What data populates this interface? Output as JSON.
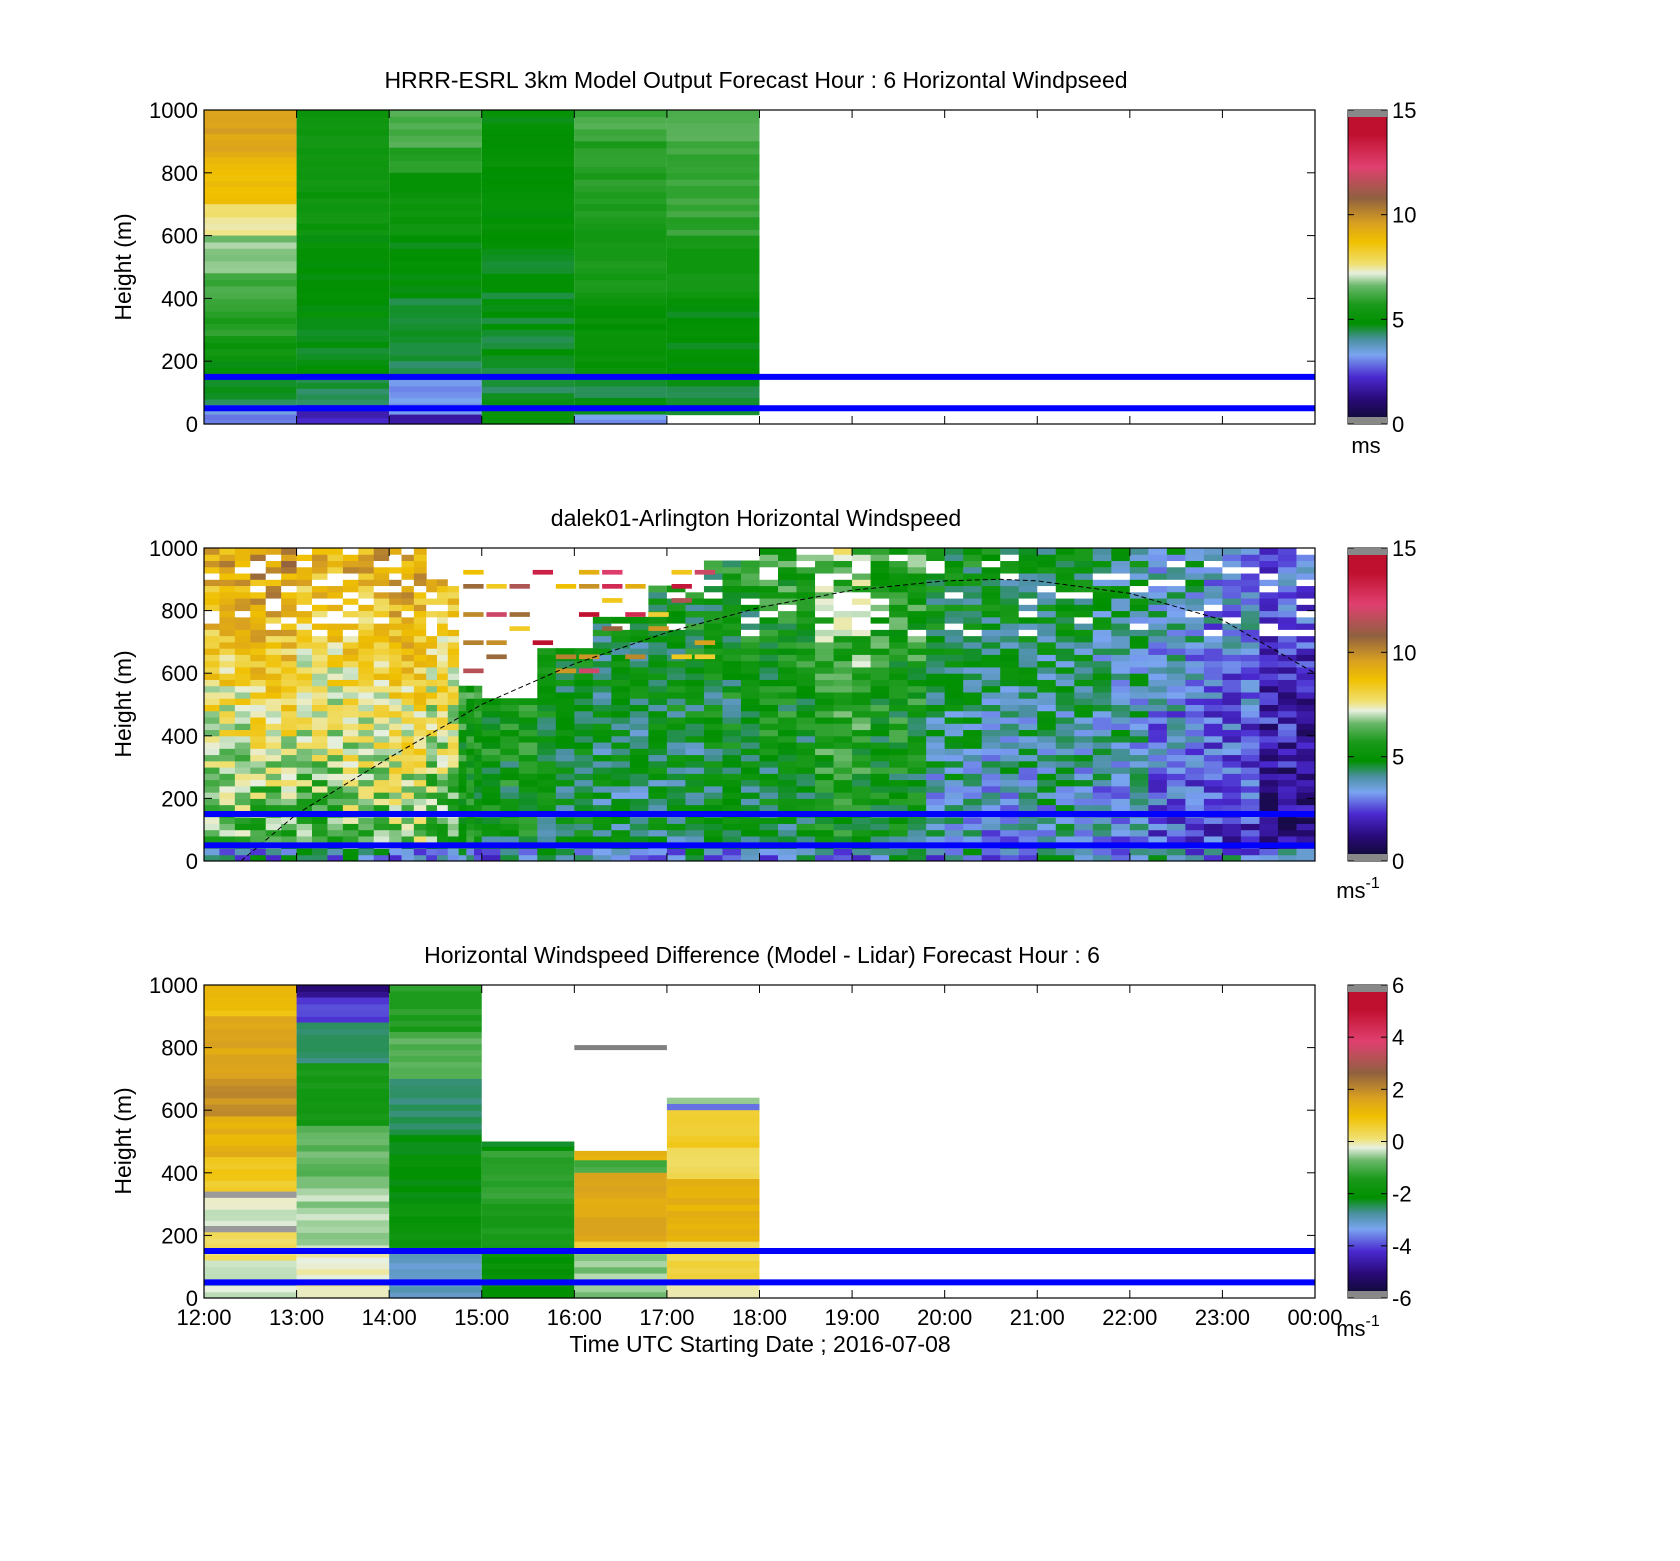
{
  "chart_data": [
    {
      "type": "heatmap",
      "title": "HRRR-ESRL 3km Model Output   Forecast Hour : 6 Horizontal Windpseed",
      "ylabel": "Height (m)",
      "xlabel": "",
      "ylim": [
        0,
        1000
      ],
      "yticks": [
        0,
        200,
        400,
        600,
        800,
        1000
      ],
      "x_range_hours": [
        12,
        24
      ],
      "colorbar": {
        "min": 0,
        "max": 15,
        "ticks": [
          0,
          5,
          10,
          15
        ],
        "unit_label": "ms",
        "unit_sup": ""
      },
      "reference_lines_m": [
        150,
        50
      ],
      "blocks": [
        {
          "t0": 12,
          "t1": 13,
          "layers": [
            {
              "z0": 850,
              "z1": 1000,
              "v": 9.5
            },
            {
              "z0": 700,
              "z1": 850,
              "v": 8.8
            },
            {
              "z0": 600,
              "z1": 700,
              "v": 7.6
            },
            {
              "z0": 480,
              "z1": 600,
              "v": 6.8
            },
            {
              "z0": 380,
              "z1": 480,
              "v": 6.2
            },
            {
              "z0": 280,
              "z1": 380,
              "v": 5.8
            },
            {
              "z0": 200,
              "z1": 280,
              "v": 5.3
            },
            {
              "z0": 140,
              "z1": 200,
              "v": 4.8
            },
            {
              "z0": 60,
              "z1": 140,
              "v": 4.5
            },
            {
              "z0": 30,
              "z1": 60,
              "v": 3.2
            },
            {
              "z0": 0,
              "z1": 30,
              "v": 3.0
            }
          ]
        },
        {
          "t0": 13,
          "t1": 14,
          "layers": [
            {
              "z0": 600,
              "z1": 1000,
              "v": 5.3
            },
            {
              "z0": 300,
              "z1": 600,
              "v": 4.9
            },
            {
              "z0": 150,
              "z1": 300,
              "v": 4.6
            },
            {
              "z0": 60,
              "z1": 150,
              "v": 4.4
            },
            {
              "z0": 0,
              "z1": 60,
              "v": 2.0
            }
          ]
        },
        {
          "t0": 14,
          "t1": 15,
          "layers": [
            {
              "z0": 880,
              "z1": 1000,
              "v": 6.2
            },
            {
              "z0": 800,
              "z1": 880,
              "v": 5.9
            },
            {
              "z0": 600,
              "z1": 800,
              "v": 5.2
            },
            {
              "z0": 400,
              "z1": 600,
              "v": 4.8
            },
            {
              "z0": 200,
              "z1": 400,
              "v": 4.6
            },
            {
              "z0": 140,
              "z1": 200,
              "v": 4.3
            },
            {
              "z0": 30,
              "z1": 140,
              "v": 3.2
            },
            {
              "z0": 0,
              "z1": 30,
              "v": 1.8
            }
          ]
        },
        {
          "t0": 15,
          "t1": 16,
          "layers": [
            {
              "z0": 600,
              "z1": 1000,
              "v": 4.9
            },
            {
              "z0": 300,
              "z1": 600,
              "v": 4.7
            },
            {
              "z0": 140,
              "z1": 300,
              "v": 4.6
            },
            {
              "z0": 60,
              "z1": 140,
              "v": 4.5
            },
            {
              "z0": 0,
              "z1": 60,
              "v": 5.0
            }
          ]
        },
        {
          "t0": 16,
          "t1": 17,
          "layers": [
            {
              "z0": 900,
              "z1": 1000,
              "v": 6.2
            },
            {
              "z0": 700,
              "z1": 900,
              "v": 5.8
            },
            {
              "z0": 400,
              "z1": 700,
              "v": 5.6
            },
            {
              "z0": 140,
              "z1": 400,
              "v": 5.0
            },
            {
              "z0": 30,
              "z1": 140,
              "v": 4.6
            },
            {
              "z0": 0,
              "z1": 30,
              "v": 3.3
            }
          ]
        },
        {
          "t0": 17,
          "t1": 18,
          "layers": [
            {
              "z0": 900,
              "z1": 1000,
              "v": 6.4
            },
            {
              "z0": 600,
              "z1": 900,
              "v": 6.0
            },
            {
              "z0": 400,
              "z1": 600,
              "v": 5.5
            },
            {
              "z0": 140,
              "z1": 400,
              "v": 4.8
            },
            {
              "z0": 30,
              "z1": 140,
              "v": 4.5
            }
          ]
        }
      ]
    },
    {
      "type": "heatmap",
      "title": "dalek01-Arlington  Horizontal Windspeed",
      "ylabel": "Height (m)",
      "xlabel": "",
      "ylim": [
        0,
        1000
      ],
      "yticks": [
        0,
        200,
        400,
        600,
        800,
        1000
      ],
      "x_range_hours": [
        12,
        24
      ],
      "colorbar": {
        "min": 0,
        "max": 15,
        "ticks": [
          0,
          5,
          10,
          15
        ],
        "unit_label": "ms",
        "unit_sup": "-1"
      },
      "reference_lines_m": [
        150,
        50
      ],
      "column_profiles": [
        {
          "t0": 12.0,
          "t1": 12.5,
          "top": 1000,
          "low": 6.0,
          "high": 9.5
        },
        {
          "t0": 12.5,
          "t1": 13.0,
          "top": 1000,
          "low": 5.8,
          "high": 10.0
        },
        {
          "t0": 13.0,
          "t1": 13.5,
          "top": 1000,
          "low": 5.9,
          "high": 9.0
        },
        {
          "t0": 13.5,
          "t1": 14.0,
          "top": 1000,
          "low": 6.2,
          "high": 9.3
        },
        {
          "t0": 14.0,
          "t1": 14.4,
          "top": 1000,
          "low": 6.4,
          "high": 9.6
        },
        {
          "t0": 14.4,
          "t1": 14.75,
          "top": 900,
          "low": 5.8,
          "high": 9.2
        },
        {
          "t0": 14.75,
          "t1": 15.0,
          "top": 560,
          "low": 5.3,
          "high": 6.0
        },
        {
          "t0": 15.0,
          "t1": 15.6,
          "top": 520,
          "low": 4.9,
          "high": 5.8
        },
        {
          "t0": 15.6,
          "t1": 16.2,
          "top": 680,
          "low": 4.6,
          "high": 5.6
        },
        {
          "t0": 16.2,
          "t1": 16.8,
          "top": 780,
          "low": 4.2,
          "high": 5.0
        },
        {
          "t0": 16.8,
          "t1": 17.4,
          "top": 880,
          "low": 4.3,
          "high": 5.3
        },
        {
          "t0": 17.4,
          "t1": 18.0,
          "top": 960,
          "low": 4.4,
          "high": 5.4
        },
        {
          "t0": 18.0,
          "t1": 18.6,
          "top": 1000,
          "low": 4.6,
          "high": 5.8
        },
        {
          "t0": 18.6,
          "t1": 19.2,
          "top": 1000,
          "low": 5.0,
          "high": 6.8
        },
        {
          "t0": 19.2,
          "t1": 19.8,
          "top": 1000,
          "low": 4.8,
          "high": 6.0
        },
        {
          "t0": 19.8,
          "t1": 20.4,
          "top": 1000,
          "low": 3.5,
          "high": 5.2
        },
        {
          "t0": 20.4,
          "t1": 21.0,
          "top": 1000,
          "low": 3.3,
          "high": 5.0
        },
        {
          "t0": 21.0,
          "t1": 21.6,
          "top": 1000,
          "low": 3.5,
          "high": 4.8
        },
        {
          "t0": 21.6,
          "t1": 22.2,
          "top": 1000,
          "low": 3.2,
          "high": 4.6
        },
        {
          "t0": 22.2,
          "t1": 22.8,
          "top": 1000,
          "low": 2.6,
          "high": 4.0
        },
        {
          "t0": 22.8,
          "t1": 23.4,
          "top": 1000,
          "low": 2.2,
          "high": 3.6
        },
        {
          "t0": 23.4,
          "t1": 24.0,
          "top": 1000,
          "low": 1.0,
          "high": 3.0
        }
      ],
      "dashed_curve_m": [
        [
          12.4,
          0
        ],
        [
          13,
          150
        ],
        [
          14,
          330
        ],
        [
          15,
          500
        ],
        [
          16,
          630
        ],
        [
          17,
          730
        ],
        [
          18,
          810
        ],
        [
          19,
          865
        ],
        [
          20,
          895
        ],
        [
          20.6,
          900
        ],
        [
          21,
          895
        ],
        [
          22,
          855
        ],
        [
          23,
          770
        ],
        [
          24,
          600
        ]
      ]
    },
    {
      "type": "heatmap",
      "title": "Horizontal Windspeed Difference (Model - Lidar) Forecast Hour : 6",
      "ylabel": "Height (m)",
      "xlabel": "Time UTC  Starting Date ; 2016-07-08",
      "ylim": [
        0,
        1000
      ],
      "yticks": [
        0,
        200,
        400,
        600,
        800,
        1000
      ],
      "xticks": [
        "12:00",
        "13:00",
        "14:00",
        "15:00",
        "16:00",
        "17:00",
        "18:00",
        "19:00",
        "20:00",
        "21:00",
        "22:00",
        "23:00",
        "00:00"
      ],
      "x_range_hours": [
        12,
        24
      ],
      "colorbar": {
        "min": -6,
        "max": 6,
        "ticks": [
          -6,
          -4,
          -2,
          0,
          2,
          4,
          6
        ],
        "unit_label": "ms",
        "unit_sup": "-1"
      },
      "reference_lines_m": [
        150,
        50
      ],
      "blocks": [
        {
          "t0": 12,
          "t1": 13,
          "layers": [
            {
              "z0": 900,
              "z1": 1000,
              "v": 1.0
            },
            {
              "z0": 700,
              "z1": 900,
              "v": 1.5
            },
            {
              "z0": 580,
              "z1": 700,
              "v": 1.9
            },
            {
              "z0": 450,
              "z1": 580,
              "v": 1.3
            },
            {
              "z0": 340,
              "z1": 450,
              "v": 0.7
            },
            {
              "z0": 320,
              "z1": 340,
              "v": "gap"
            },
            {
              "z0": 230,
              "z1": 320,
              "v": -0.3
            },
            {
              "z0": 210,
              "z1": 230,
              "v": "gap"
            },
            {
              "z0": 120,
              "z1": 210,
              "v": 0.2
            },
            {
              "z0": 0,
              "z1": 120,
              "v": -0.4
            }
          ]
        },
        {
          "t0": 13,
          "t1": 14,
          "layers": [
            {
              "z0": 960,
              "z1": 1000,
              "v": -5.0
            },
            {
              "z0": 880,
              "z1": 960,
              "v": -4.0
            },
            {
              "z0": 750,
              "z1": 880,
              "v": -2.6
            },
            {
              "z0": 550,
              "z1": 750,
              "v": -1.6
            },
            {
              "z0": 350,
              "z1": 550,
              "v": -0.8
            },
            {
              "z0": 150,
              "z1": 350,
              "v": -0.5
            },
            {
              "z0": 0,
              "z1": 150,
              "v": -0.2
            }
          ]
        },
        {
          "t0": 14,
          "t1": 15,
          "layers": [
            {
              "z0": 850,
              "z1": 1000,
              "v": -1.4
            },
            {
              "z0": 700,
              "z1": 850,
              "v": -0.9
            },
            {
              "z0": 520,
              "z1": 700,
              "v": -2.5
            },
            {
              "z0": 300,
              "z1": 520,
              "v": -2.1
            },
            {
              "z0": 150,
              "z1": 300,
              "v": -1.9
            },
            {
              "z0": 0,
              "z1": 150,
              "v": -3.0
            }
          ]
        },
        {
          "t0": 15,
          "t1": 16,
          "layers": [
            {
              "z0": 470,
              "z1": 500,
              "v": -2.2
            },
            {
              "z0": 300,
              "z1": 470,
              "v": -1.2
            },
            {
              "z0": 150,
              "z1": 300,
              "v": -1.5
            },
            {
              "z0": 0,
              "z1": 150,
              "v": -2.0
            }
          ]
        },
        {
          "t0": 16,
          "t1": 17,
          "layers": [
            {
              "z0": 440,
              "z1": 470,
              "v": 1.2
            },
            {
              "z0": 400,
              "z1": 440,
              "v": -1.0
            },
            {
              "z0": 180,
              "z1": 400,
              "v": 1.5
            },
            {
              "z0": 140,
              "z1": 180,
              "v": 0.6
            },
            {
              "z0": 0,
              "z1": 140,
              "v": -0.6
            }
          ]
        },
        {
          "t0": 17,
          "t1": 18,
          "layers": [
            {
              "z0": 620,
              "z1": 640,
              "v": -0.4
            },
            {
              "z0": 600,
              "z1": 620,
              "v": -3.8
            },
            {
              "z0": 480,
              "z1": 600,
              "v": 0.6
            },
            {
              "z0": 380,
              "z1": 480,
              "v": 0.3
            },
            {
              "z0": 180,
              "z1": 380,
              "v": 1.3
            },
            {
              "z0": 60,
              "z1": 180,
              "v": 0.4
            },
            {
              "z0": 0,
              "z1": 60,
              "v": -0.2
            }
          ]
        }
      ],
      "gap_segments": [
        {
          "t0": 16,
          "t1": 17,
          "z": 800
        }
      ]
    }
  ]
}
